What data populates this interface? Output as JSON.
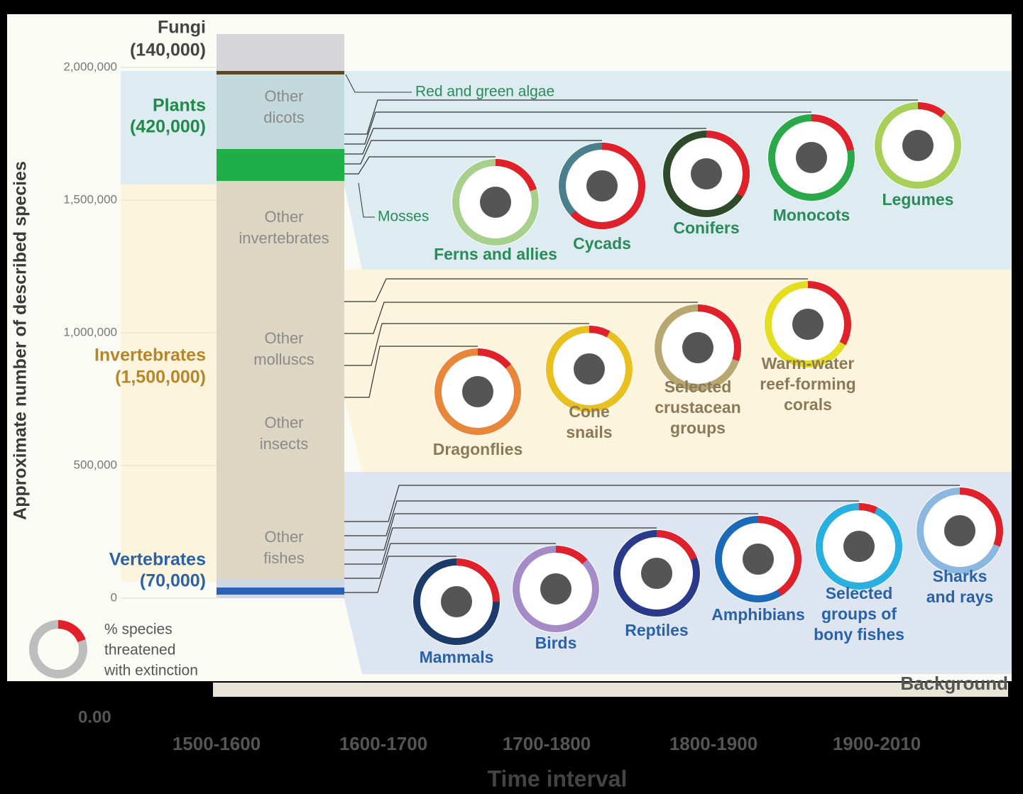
{
  "axis": {
    "label": "Approximate number of described species",
    "ylim": [
      0,
      2100000
    ],
    "yticks": [
      0,
      {
        "value": 500000,
        "label": "500,000"
      },
      {
        "value": 1000000,
        "label": "1,000,000"
      },
      {
        "value": 1500000,
        "label": "1,500,000"
      },
      {
        "value": 2000000,
        "label": "2,000,000"
      }
    ]
  },
  "groups": [
    {
      "name": "Fungi",
      "count": "(140,000)"
    },
    {
      "name": "Plants",
      "count": "(420,000)"
    },
    {
      "name": "Invertebrates",
      "count": "(1,500,000)"
    },
    {
      "name": "Vertebrates",
      "count": "(70,000)"
    }
  ],
  "bar_labels": [
    [
      "Other",
      "dicots"
    ],
    [
      "Other",
      "invertebrates"
    ],
    [
      "Other",
      "molluscs"
    ],
    [
      "Other",
      "insects"
    ],
    [
      "Other",
      "fishes"
    ]
  ],
  "callouts": [
    "Red and green algae",
    "Mosses"
  ],
  "taxa": [
    {
      "label": [
        "Ferns and allies"
      ],
      "threatened": 20
    },
    {
      "label": [
        "Cycads"
      ],
      "threatened": 63
    },
    {
      "label": [
        "Conifers"
      ],
      "threatened": 34
    },
    {
      "label": [
        "Monocots"
      ],
      "threatened": 22
    },
    {
      "label": [
        "Legumes"
      ],
      "threatened": 11
    },
    {
      "label": [
        "Dragonflies"
      ],
      "threatened": 14
    },
    {
      "label": [
        "Cone",
        "snails"
      ],
      "threatened": 8
    },
    {
      "label": [
        "Selected",
        "crustacean",
        "groups"
      ],
      "threatened": 30
    },
    {
      "label": [
        "Warm-water",
        "reef-forming",
        "corals"
      ],
      "threatened": 33
    },
    {
      "label": [
        "Mammals"
      ],
      "threatened": 25
    },
    {
      "label": [
        "Birds"
      ],
      "threatened": 13
    },
    {
      "label": [
        "Reptiles"
      ],
      "threatened": 19
    },
    {
      "label": [
        "Amphibians"
      ],
      "threatened": 41
    },
    {
      "label": [
        "Selected",
        "groups of",
        "bony fishes"
      ],
      "threatened": 7
    },
    {
      "label": [
        "Sharks",
        "and rays"
      ],
      "threatened": 31
    }
  ],
  "legend": [
    "% species",
    "threatened",
    "with extinction"
  ],
  "footer": {
    "y_value": "0.00",
    "intervals": [
      "1500-1600",
      "1600-1700",
      "1700-1800",
      "1800-1900",
      "1900-2010"
    ],
    "x_label": "Time interval",
    "series_label": "Background"
  }
}
